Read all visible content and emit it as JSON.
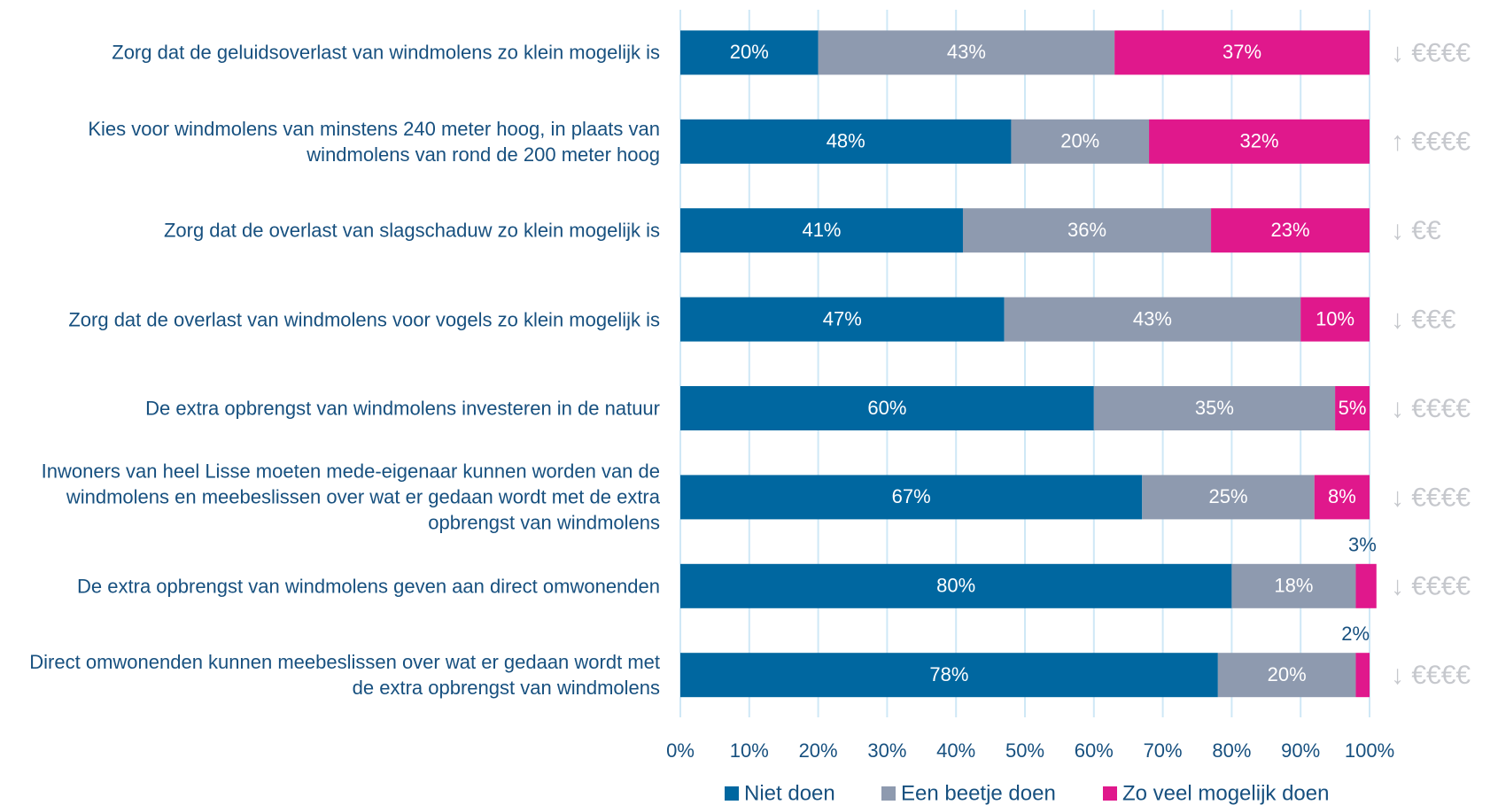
{
  "chart_data": {
    "type": "stacked_bar_horizontal",
    "categories": [
      "Zorg dat de geluidsoverlast van windmolens zo klein mogelijk is",
      "Kies voor windmolens van minstens 240 meter hoog, in plaats van\nwindmolens van rond de 200 meter hoog",
      "Zorg dat de overlast van slagschaduw zo klein mogelijk is",
      "Zorg dat de overlast van windmolens voor vogels zo klein mogelijk is",
      "De extra opbrengst van windmolens investeren in de natuur",
      "Inwoners van heel Lisse moeten mede-eigenaar kunnen worden van de\nwindmolens en meebeslissen over wat er gedaan wordt met de extra\nopbrengst van windmolens",
      "De extra opbrengst van windmolens geven aan direct omwonenden",
      "Direct omwonenden kunnen meebeslissen over wat er gedaan wordt met\nde extra opbrengst van windmolens"
    ],
    "series": [
      {
        "name": "Niet doen",
        "color": "#0067a0",
        "values": [
          20,
          48,
          41,
          47,
          60,
          67,
          80,
          78
        ],
        "value_labels": [
          "20%",
          "48%",
          "41%",
          "47%",
          "60%",
          "67%",
          "80%",
          "78%"
        ]
      },
      {
        "name": "Een beetje doen",
        "color": "#8e9aaf",
        "values": [
          43,
          20,
          36,
          43,
          35,
          25,
          18,
          20
        ],
        "value_labels": [
          "43%",
          "20%",
          "36%",
          "43%",
          "35%",
          "25%",
          "18%",
          "20%"
        ]
      },
      {
        "name": "Zo veel mogelijk doen",
        "color": "#e0188c",
        "values": [
          37,
          32,
          23,
          10,
          5,
          8,
          3,
          2
        ],
        "value_labels": [
          "37%",
          "32%",
          "23%",
          "10%",
          "5%",
          "8%",
          "3%",
          "2%"
        ]
      }
    ],
    "annotations": [
      "↓ €€€€",
      "↑ €€€€",
      "↓ €€",
      "↓ €€€",
      "↓ €€€€",
      "↓ €€€€",
      "↓ €€€€",
      "↓ €€€€"
    ],
    "xlim": [
      0,
      100
    ],
    "xticks": [
      {
        "value": 0,
        "label": "0%"
      },
      {
        "value": 10,
        "label": "10%"
      },
      {
        "value": 20,
        "label": "20%"
      },
      {
        "value": 30,
        "label": "30%"
      },
      {
        "value": 40,
        "label": "40%"
      },
      {
        "value": 50,
        "label": "50%"
      },
      {
        "value": 60,
        "label": "60%"
      },
      {
        "value": 70,
        "label": "70%"
      },
      {
        "value": 80,
        "label": "80%"
      },
      {
        "value": 90,
        "label": "90%"
      },
      {
        "value": 100,
        "label": "100%"
      }
    ],
    "grid": true,
    "legend": "bottom"
  }
}
